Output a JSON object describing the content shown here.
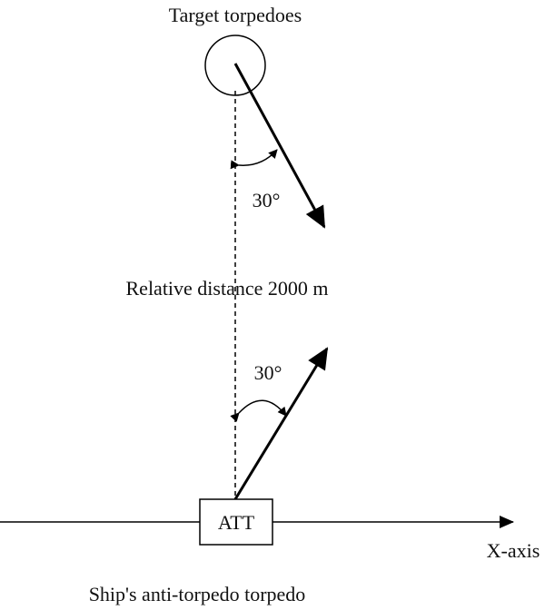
{
  "nodes": [
    {
      "label": "Target torpedoes"
    },
    {
      "label": "ATT"
    }
  ],
  "angles": [
    "30°",
    "30°"
  ],
  "distance_label": "Relative distance 2000 m",
  "axis_label": "X-axis",
  "caption": "Ship's anti-torpedo torpedo"
}
